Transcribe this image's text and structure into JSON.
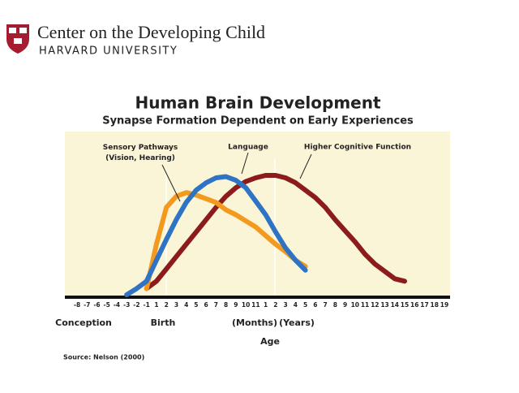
{
  "header": {
    "title": "Center on the Developing Child",
    "subtitle": "HARVARD UNIVERSITY"
  },
  "chart_data": {
    "type": "line",
    "title": "Human Brain Development",
    "subtitle": "Synapse Formation Dependent on Early Experiences",
    "categories": [
      "-8",
      "-7",
      "-6",
      "-5",
      "-4",
      "-3",
      "-2",
      "-1",
      "1",
      "2",
      "3",
      "4",
      "5",
      "6",
      "7",
      "8",
      "9",
      "10",
      "11",
      "1",
      "2",
      "3",
      "4",
      "5",
      "6",
      "7",
      "8",
      "9",
      "10",
      "11",
      "12",
      "13",
      "14",
      "15",
      "16",
      "17",
      "18",
      "19"
    ],
    "ylim": [
      0,
      100
    ],
    "series": [
      {
        "name": "Sensory Pathways (Vision, Hearing)",
        "color": "#f39a1e",
        "values": [
          null,
          null,
          null,
          null,
          null,
          null,
          null,
          7,
          43,
          73,
          82,
          85,
          83,
          80,
          77,
          71,
          67,
          62,
          57,
          50,
          43,
          37,
          30,
          25,
          null,
          null,
          null,
          null,
          null,
          null,
          null,
          null,
          null,
          null,
          null,
          null,
          null,
          null
        ]
      },
      {
        "name": "Language",
        "color": "#2f74c4",
        "values": [
          null,
          null,
          null,
          null,
          null,
          2,
          7,
          13,
          30,
          47,
          63,
          77,
          87,
          93,
          97,
          98,
          95,
          89,
          78,
          67,
          53,
          40,
          30,
          22,
          null,
          null,
          null,
          null,
          null,
          null,
          null,
          null,
          null,
          null,
          null,
          null,
          null,
          null
        ]
      },
      {
        "name": "Higher Cognitive Function",
        "color": "#8c1c1c",
        "values": [
          null,
          null,
          null,
          null,
          null,
          null,
          null,
          7,
          13,
          23,
          33,
          43,
          53,
          63,
          73,
          82,
          89,
          94,
          97,
          99,
          99,
          97,
          93,
          87,
          81,
          73,
          63,
          54,
          45,
          35,
          27,
          21,
          15,
          13,
          null,
          null,
          null,
          null
        ]
      }
    ],
    "period_labels": [
      "Conception",
      "Birth",
      "(Months)",
      "(Years)"
    ],
    "xlabel": "Age",
    "source": "Source: Nelson (2000)"
  }
}
